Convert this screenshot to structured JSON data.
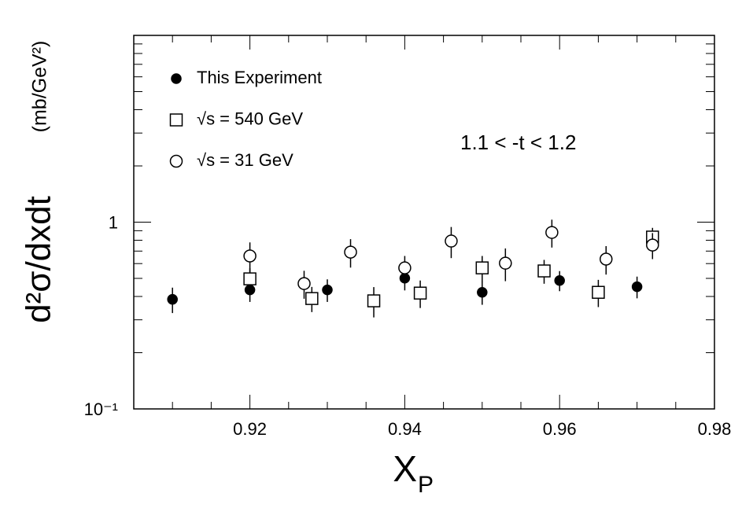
{
  "chart_data": {
    "type": "scatter",
    "ylabel": "d²σ/dxdt",
    "yunit": "(mb/GeV²)",
    "xlabel": "X",
    "xlabel_sub": "P",
    "annotation": "1.1 < -t < 1.2",
    "log_y": true,
    "xlim": [
      0.905,
      0.98
    ],
    "xticks": [
      0.92,
      0.94,
      0.96,
      0.98
    ],
    "xminorticks": [
      0.91,
      0.915,
      0.925,
      0.93,
      0.935,
      0.945,
      0.95,
      0.955,
      0.965,
      0.97,
      0.975
    ],
    "ylim": [
      0.1,
      10
    ],
    "yticks": [
      {
        "value": 0.1,
        "label": "10⁻¹"
      },
      1
    ],
    "yminorticks": [
      0.2,
      0.3,
      0.4,
      0.5,
      0.6,
      0.7,
      0.8,
      0.9,
      2,
      3,
      4,
      5,
      6,
      7,
      8,
      9
    ],
    "series": [
      {
        "name": "This Experiment",
        "marker": "filled-circle",
        "color": "#000000",
        "x": [
          0.91,
          0.92,
          0.93,
          0.94,
          0.95,
          0.96,
          0.97
        ],
        "values": [
          0.386,
          0.434,
          0.434,
          0.501,
          0.421,
          0.487,
          0.451
        ],
        "errors": [
          0.06,
          0.06,
          0.06,
          0.07,
          0.06,
          0.06,
          0.06
        ]
      },
      {
        "name": "√s = 540 GeV",
        "marker": "open-square",
        "color": "#000000",
        "x": [
          0.92,
          0.928,
          0.936,
          0.942,
          0.95,
          0.958,
          0.965,
          0.972
        ],
        "values": [
          0.497,
          0.39,
          0.379,
          0.417,
          0.569,
          0.548,
          0.421,
          0.832
        ],
        "errors": [
          0.07,
          0.06,
          0.07,
          0.07,
          0.09,
          0.08,
          0.07,
          0.1
        ]
      },
      {
        "name": "√s = 31 GeV",
        "marker": "open-circle",
        "color": "#000000",
        "x": [
          0.92,
          0.927,
          0.933,
          0.94,
          0.946,
          0.953,
          0.959,
          0.966,
          0.972
        ],
        "values": [
          0.659,
          0.469,
          0.691,
          0.569,
          0.792,
          0.603,
          0.881,
          0.634,
          0.754
        ],
        "errors": [
          0.12,
          0.08,
          0.12,
          0.09,
          0.15,
          0.12,
          0.15,
          0.11,
          0.12
        ]
      }
    ]
  }
}
